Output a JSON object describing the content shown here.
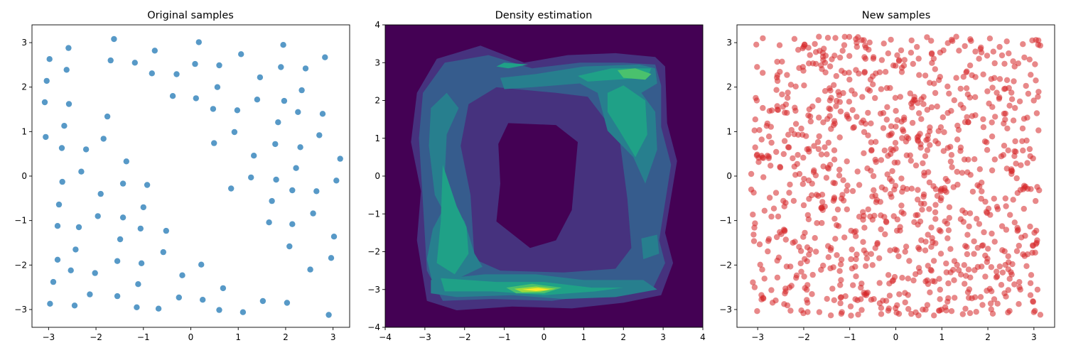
{
  "figure_bg": "#ffffff",
  "chart_data": [
    {
      "type": "scatter",
      "title": "Original samples",
      "xlabel": "",
      "ylabel": "",
      "xlim": [
        -3.35,
        3.35
      ],
      "ylim": [
        -3.4,
        3.4
      ],
      "xticks": [
        -3,
        -2,
        -1,
        0,
        1,
        2,
        3
      ],
      "yticks": [
        -3,
        -2,
        -1,
        0,
        1,
        2,
        3
      ],
      "marker_color": "#1f77b4",
      "marker_alpha": 0.75,
      "points": [
        [
          -2.98,
          2.63
        ],
        [
          -3.04,
          2.14
        ],
        [
          -3.08,
          1.66
        ],
        [
          -3.06,
          0.88
        ],
        [
          -2.58,
          2.88
        ],
        [
          -2.62,
          2.39
        ],
        [
          -2.57,
          1.62
        ],
        [
          -2.67,
          1.13
        ],
        [
          -2.72,
          0.63
        ],
        [
          -2.71,
          -0.13
        ],
        [
          -2.78,
          -0.64
        ],
        [
          -2.81,
          -1.12
        ],
        [
          -2.81,
          -1.88
        ],
        [
          -2.9,
          -2.38
        ],
        [
          -2.97,
          -2.87
        ],
        [
          -2.36,
          -1.15
        ],
        [
          -2.43,
          -1.65
        ],
        [
          -2.53,
          -2.12
        ],
        [
          -2.45,
          -2.91
        ],
        [
          -2.31,
          0.1
        ],
        [
          -2.21,
          0.6
        ],
        [
          -2.13,
          -2.66
        ],
        [
          -2.02,
          -2.18
        ],
        [
          -1.96,
          -0.9
        ],
        [
          -1.9,
          -0.4
        ],
        [
          -1.84,
          0.84
        ],
        [
          -1.76,
          1.34
        ],
        [
          -1.69,
          2.6
        ],
        [
          -1.62,
          3.08
        ],
        [
          -1.55,
          -2.7
        ],
        [
          -1.55,
          -1.91
        ],
        [
          -1.49,
          -1.42
        ],
        [
          -1.43,
          -0.93
        ],
        [
          -1.43,
          -0.17
        ],
        [
          -1.36,
          0.33
        ],
        [
          -1.18,
          2.55
        ],
        [
          -1.14,
          -2.95
        ],
        [
          -1.11,
          -2.43
        ],
        [
          -1.06,
          -1.18
        ],
        [
          -1.04,
          -1.96
        ],
        [
          -1.0,
          -0.7
        ],
        [
          -0.92,
          -0.2
        ],
        [
          -0.82,
          2.31
        ],
        [
          -0.76,
          2.82
        ],
        [
          -0.68,
          -2.98
        ],
        [
          -0.58,
          -1.71
        ],
        [
          -0.52,
          -1.23
        ],
        [
          -0.38,
          1.8
        ],
        [
          -0.3,
          2.29
        ],
        [
          -0.25,
          -2.73
        ],
        [
          -0.18,
          -2.23
        ],
        [
          0.09,
          2.52
        ],
        [
          0.11,
          1.75
        ],
        [
          0.17,
          3.01
        ],
        [
          0.22,
          -1.99
        ],
        [
          0.25,
          -2.78
        ],
        [
          0.47,
          1.51
        ],
        [
          0.49,
          0.74
        ],
        [
          0.56,
          2.0
        ],
        [
          0.6,
          2.49
        ],
        [
          0.6,
          -3.01
        ],
        [
          0.68,
          -2.52
        ],
        [
          0.85,
          -0.28
        ],
        [
          0.92,
          0.99
        ],
        [
          0.98,
          1.48
        ],
        [
          1.06,
          2.74
        ],
        [
          1.1,
          -3.06
        ],
        [
          1.27,
          -0.03
        ],
        [
          1.33,
          0.46
        ],
        [
          1.4,
          1.72
        ],
        [
          1.46,
          2.22
        ],
        [
          1.52,
          -2.81
        ],
        [
          1.65,
          -1.04
        ],
        [
          1.71,
          -0.56
        ],
        [
          1.78,
          0.72
        ],
        [
          1.8,
          -0.08
        ],
        [
          1.84,
          1.21
        ],
        [
          1.9,
          2.45
        ],
        [
          1.95,
          2.95
        ],
        [
          1.97,
          1.69
        ],
        [
          2.03,
          -2.85
        ],
        [
          2.08,
          -1.58
        ],
        [
          2.14,
          -0.32
        ],
        [
          2.14,
          -1.08
        ],
        [
          2.22,
          0.18
        ],
        [
          2.26,
          1.44
        ],
        [
          2.31,
          0.65
        ],
        [
          2.34,
          1.93
        ],
        [
          2.42,
          2.42
        ],
        [
          2.52,
          -2.1
        ],
        [
          2.58,
          -0.84
        ],
        [
          2.65,
          -0.34
        ],
        [
          2.71,
          0.92
        ],
        [
          2.78,
          1.4
        ],
        [
          2.83,
          2.67
        ],
        [
          2.91,
          -3.12
        ],
        [
          2.96,
          -1.84
        ],
        [
          3.02,
          -1.36
        ],
        [
          3.07,
          -0.1
        ],
        [
          3.15,
          0.39
        ]
      ]
    },
    {
      "type": "heatmap",
      "title": "Density estimation",
      "xlabel": "",
      "ylabel": "",
      "xlim": [
        -4,
        4
      ],
      "ylim": [
        -4,
        4
      ],
      "xticks": [
        -4,
        -3,
        -2,
        -1,
        0,
        1,
        2,
        3,
        4
      ],
      "yticks": [
        -4,
        -3,
        -2,
        -1,
        0,
        1,
        2,
        3,
        4
      ],
      "plot_type": "filled contour",
      "colormap": [
        "#440154",
        "#46327e",
        "#365c8d",
        "#277f8e",
        "#1fa187",
        "#4ac16d",
        "#a0da39",
        "#fde725"
      ]
    },
    {
      "type": "scatter",
      "title": "New samples",
      "xlabel": "",
      "ylabel": "",
      "xlim": [
        -3.45,
        3.45
      ],
      "ylim": [
        -3.4,
        3.4
      ],
      "xticks": [
        -3,
        -2,
        -1,
        0,
        1,
        2,
        3
      ],
      "yticks": [
        -3,
        -2,
        -1,
        0,
        1,
        2,
        3
      ],
      "marker_color": "#d62728",
      "marker_alpha": 0.55,
      "point_count": 1000,
      "xrange": [
        -3.14,
        3.14
      ],
      "yrange": [
        -3.14,
        3.14
      ]
    }
  ]
}
